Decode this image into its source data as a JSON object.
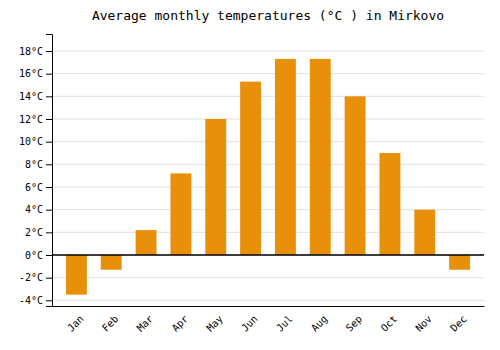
{
  "chart_data": {
    "type": "bar",
    "title": "Average monthly temperatures (°C ) in Mirkovo",
    "categories": [
      "Jan",
      "Feb",
      "Mar",
      "Apr",
      "May",
      "Jun",
      "Jul",
      "Aug",
      "Sep",
      "Oct",
      "Nov",
      "Dec"
    ],
    "values": [
      -3.5,
      -1.3,
      2.2,
      7.2,
      12.0,
      15.3,
      17.3,
      17.3,
      14.0,
      9.0,
      4.0,
      -1.3
    ],
    "color": "#E8900A",
    "ylim": [
      -4.5,
      19.5
    ],
    "yticks": [
      {
        "value": -4,
        "label": "-4°C"
      },
      {
        "value": -2,
        "label": "-2°C"
      },
      {
        "value": 0,
        "label": "0°C"
      },
      {
        "value": 2,
        "label": "2°C"
      },
      {
        "value": 4,
        "label": "4°C"
      },
      {
        "value": 6,
        "label": "6°C"
      },
      {
        "value": 8,
        "label": "8°C"
      },
      {
        "value": 10,
        "label": "10°C"
      },
      {
        "value": 12,
        "label": "12°C"
      },
      {
        "value": 14,
        "label": "14°C"
      },
      {
        "value": 16,
        "label": "16°C"
      },
      {
        "value": 18,
        "label": "18°C"
      }
    ],
    "grid": true
  }
}
